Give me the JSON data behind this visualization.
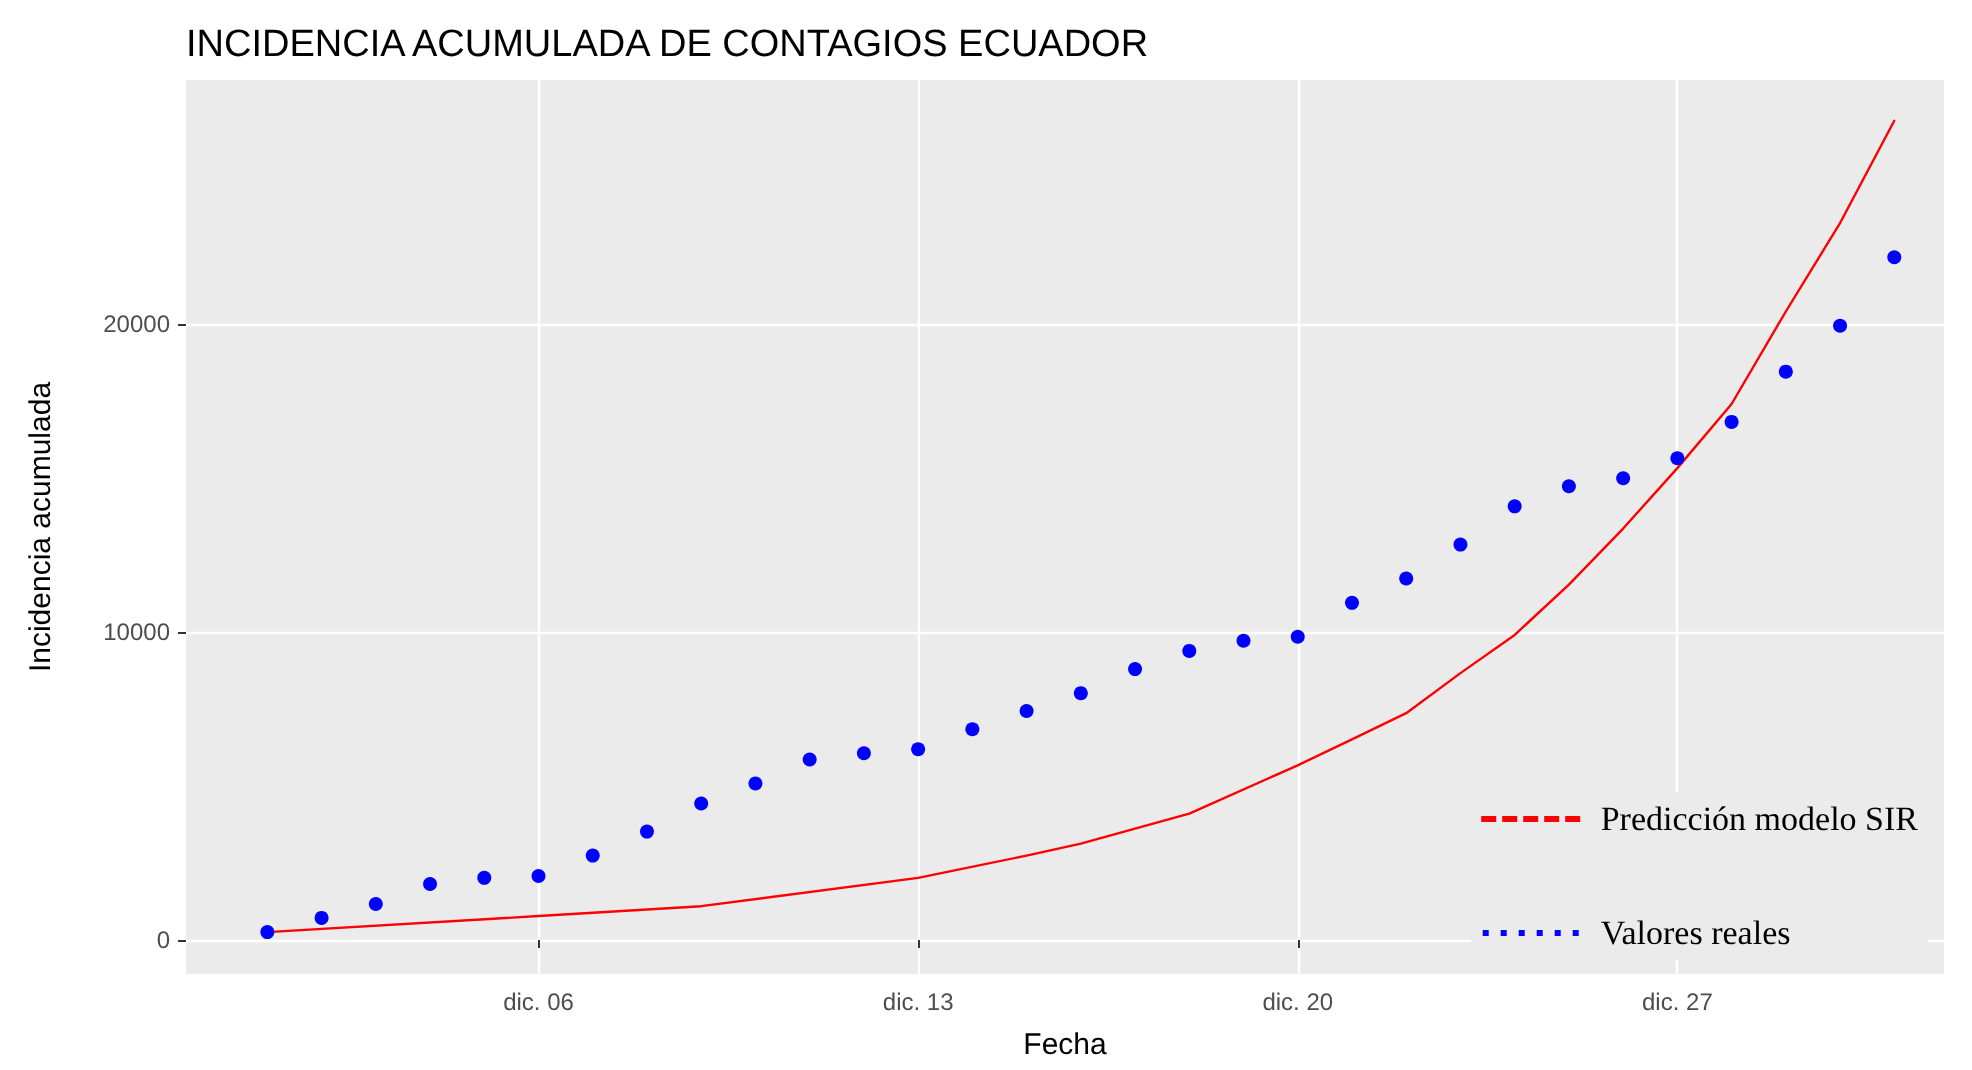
{
  "chart_data": {
    "type": "scatter",
    "title": "INCIDENCIA ACUMULADA DE CONTAGIOS ECUADOR",
    "xlabel": "Fecha",
    "ylabel": "Incidencia acumulada",
    "xlim": [
      "--11-29T12:00",
      "--12-31T22:00"
    ],
    "ylim": [
      -1100,
      27900
    ],
    "xticks": [
      {
        "value": "--12-06",
        "label": "dic. 06"
      },
      {
        "value": "--12-13",
        "label": "dic. 13"
      },
      {
        "value": "--12-20",
        "label": "dic. 20"
      },
      {
        "value": "--12-27",
        "label": "dic. 27"
      }
    ],
    "yticks": [
      0,
      10000,
      20000
    ],
    "grid": true,
    "legend": "bottom right",
    "series": [
      {
        "name": "Predicción modelo SIR",
        "type": "line",
        "color": "#ff0000",
        "marker": "none",
        "line_style": "solid",
        "x": [
          "--12-01",
          "--12-06",
          "--12-09",
          "--12-13",
          "--12-15",
          "--12-16",
          "--12-18",
          "--12-20",
          "--12-21",
          "--12-22",
          "--12-23",
          "--12-24",
          "--12-25",
          "--12-26",
          "--12-27",
          "--12-28",
          "--12-29",
          "--12-30",
          "--12-31"
        ],
        "values": [
          260,
          780,
          1100,
          2020,
          2740,
          3130,
          4100,
          5670,
          6510,
          7360,
          8660,
          9900,
          11530,
          13350,
          15310,
          17390,
          20390,
          23260,
          26580
        ]
      },
      {
        "name": "Valores reales",
        "color": "#0000ff",
        "marker": "circle",
        "x": [
          "--12-01",
          "--12-02",
          "--12-03",
          "--12-04",
          "--12-05",
          "--12-06",
          "--12-07",
          "--12-08",
          "--12-09",
          "--12-10",
          "--12-11",
          "--12-12",
          "--12-13",
          "--12-14",
          "--12-15",
          "--12-16",
          "--12-17",
          "--12-18",
          "--12-19",
          "--12-20",
          "--12-21",
          "--12-22",
          "--12-23",
          "--12-24",
          "--12-25",
          "--12-26",
          "--12-27",
          "--12-28",
          "--12-29",
          "--12-30",
          "--12-31"
        ],
        "values": [
          260,
          720,
          1170,
          1820,
          2020,
          2080,
          2740,
          3520,
          4430,
          5080,
          5860,
          6060,
          6190,
          6840,
          7430,
          8010,
          8790,
          9380,
          9710,
          9840,
          10940,
          11730,
          12830,
          14070,
          14720,
          14980,
          15630,
          16810,
          18440,
          19930,
          22150
        ]
      }
    ]
  }
}
